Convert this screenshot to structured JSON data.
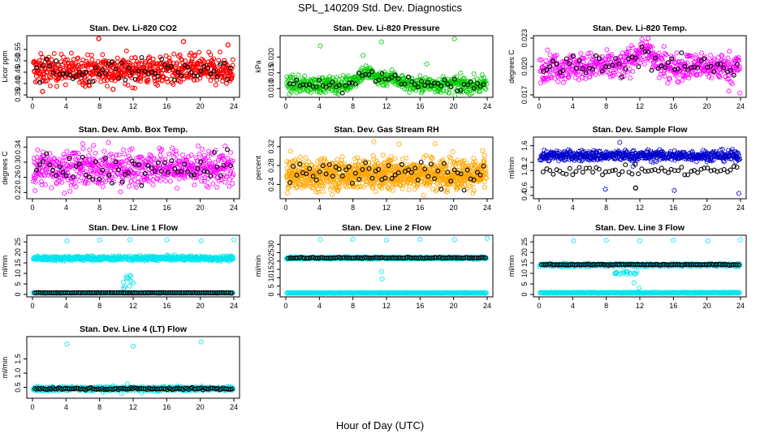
{
  "page": {
    "title": "SPL_140209  Std. Dev. Diagnostics",
    "xlabel": "Hour of Day (UTC)"
  },
  "chart_data": [
    {
      "id": "co2",
      "type": "scatter",
      "title": "Stan. Dev. Li-820 CO2",
      "ylabel": "Licor ppm",
      "xlim": [
        0,
        24
      ],
      "xticks": [
        0,
        4,
        8,
        12,
        16,
        20,
        24
      ],
      "ylim": [
        0.35,
        0.6
      ],
      "yticks": [
        "0.35",
        "0.40",
        "0.45",
        "0.50",
        "0.55"
      ],
      "series": [
        {
          "color": "#ff0000",
          "shape": "ring",
          "x_range": [
            0.1,
            23.9
          ],
          "count": 620,
          "center": 0.46,
          "spread": 0.035,
          "outliers": [
            [
              7.9,
              0.598
            ],
            [
              18.0,
              0.585
            ],
            [
              1.2,
              0.365
            ],
            [
              9.6,
              0.375
            ],
            [
              23.3,
              0.57
            ]
          ]
        },
        {
          "color": "#000000",
          "shape": "ring",
          "x_range": [
            0.5,
            23.6
          ],
          "count": 60,
          "center": 0.455,
          "spread": 0.03,
          "outliers": []
        }
      ]
    },
    {
      "id": "pressure",
      "type": "scatter",
      "title": "Stan. Dev. Li-820 Pressure",
      "ylabel": "kPa",
      "xlim": [
        0,
        24
      ],
      "xticks": [
        0,
        4,
        8,
        12,
        16,
        20,
        24
      ],
      "ylim": [
        0.008,
        0.026
      ],
      "yticks": [
        "0.010",
        "0.015",
        "0.020"
      ],
      "series": [
        {
          "color": "#00cc00",
          "shape": "sun",
          "x_range": [
            0.1,
            23.9
          ],
          "count": 560,
          "center": 0.0112,
          "spread": 0.0014,
          "hump": [
            [
              9.5,
              0.015
            ],
            [
              12.5,
              0.0135
            ]
          ],
          "outliers": [
            [
              4.1,
              0.0235
            ],
            [
              20.1,
              0.0258
            ],
            [
              11.4,
              0.0248
            ],
            [
              16.8,
              0.0178
            ],
            [
              9.2,
              0.0205
            ]
          ]
        },
        {
          "color": "#000000",
          "shape": "ring",
          "x_range": [
            0.5,
            23.6
          ],
          "count": 60,
          "center": 0.0112,
          "spread": 0.0012,
          "hump": [
            [
              9.5,
              0.0145
            ],
            [
              12.5,
              0.013
            ]
          ],
          "outliers": []
        }
      ]
    },
    {
      "id": "temp",
      "type": "scatter",
      "title": "Stan. Dev. Li-820 Temp.",
      "ylabel": "degrees C",
      "xlim": [
        0,
        24
      ],
      "xticks": [
        0,
        4,
        8,
        12,
        16,
        20,
        24
      ],
      "ylim": [
        0.017,
        0.023
      ],
      "yticks": [
        "0.017",
        "0.020",
        "0.023"
      ],
      "series": [
        {
          "color": "#ff00ff",
          "shape": "sun",
          "x_range": [
            0.1,
            23.9
          ],
          "count": 560,
          "center": 0.02,
          "spread": 0.0008,
          "hump": [
            [
              12.3,
              0.0217
            ]
          ],
          "outliers": [
            [
              23.9,
              0.0172
            ],
            [
              22.6,
              0.0174
            ]
          ]
        },
        {
          "color": "#000000",
          "shape": "ring",
          "x_range": [
            0.5,
            23.6
          ],
          "count": 60,
          "center": 0.02,
          "spread": 0.0007,
          "hump": [
            [
              12.3,
              0.0215
            ]
          ],
          "outliers": []
        }
      ]
    },
    {
      "id": "ambbox",
      "type": "scatter",
      "title": "Stan. Dev. Amb. Box Temp.",
      "ylabel": "degrees C",
      "xlim": [
        0,
        24
      ],
      "xticks": [
        0,
        4,
        8,
        12,
        16,
        20,
        24
      ],
      "ylim": [
        0.21,
        0.36
      ],
      "yticks": [
        "0.22",
        "0.26",
        "0.30",
        "0.34"
      ],
      "series": [
        {
          "color": "#ff00ff",
          "shape": "sun",
          "x_range": [
            0.1,
            23.9
          ],
          "count": 620,
          "center": 0.285,
          "spread": 0.026,
          "outliers": [
            [
              0.3,
              0.225
            ],
            [
              3.8,
              0.218
            ],
            [
              10.5,
              0.222
            ]
          ]
        },
        {
          "color": "#000000",
          "shape": "ring",
          "x_range": [
            0.5,
            23.6
          ],
          "count": 60,
          "center": 0.28,
          "spread": 0.022,
          "outliers": []
        }
      ]
    },
    {
      "id": "rh",
      "type": "scatter",
      "title": "Stan. Dev. Gas Stream RH",
      "ylabel": "percent",
      "xlim": [
        0,
        24
      ],
      "xticks": [
        0,
        4,
        8,
        12,
        16,
        20,
        24
      ],
      "ylim": [
        0.215,
        0.335
      ],
      "yticks": [
        "0.24",
        "0.28",
        "0.32"
      ],
      "series": [
        {
          "color": "#ffa500",
          "shape": "sun",
          "x_range": [
            0.1,
            23.9
          ],
          "count": 1000,
          "center": 0.262,
          "spread": 0.018,
          "outliers": [
            [
              10.5,
              0.33
            ],
            [
              13.5,
              0.325
            ],
            [
              17.8,
              0.326
            ],
            [
              0.2,
              0.222
            ]
          ]
        },
        {
          "color": "#000000",
          "shape": "ring",
          "x_range": [
            0.5,
            23.6
          ],
          "count": 60,
          "center": 0.262,
          "spread": 0.015,
          "outliers": []
        }
      ]
    },
    {
      "id": "flow",
      "type": "scatter",
      "title": "Stan. Dev. Sample Flow",
      "ylabel": "ml/min",
      "xlim": [
        0,
        24
      ],
      "xticks": [
        0,
        4,
        8,
        12,
        16,
        20,
        24
      ],
      "ylim": [
        0.38,
        1.75
      ],
      "yticks": [
        "0.4",
        "0.6",
        "1.0",
        "1.2",
        "1.6"
      ],
      "series": [
        {
          "color": "#0000cc",
          "shape": "sun",
          "x_range": [
            0.1,
            23.9
          ],
          "count": 560,
          "center": 1.36,
          "spread": 0.07,
          "outliers": [
            [
              9.6,
              1.68
            ],
            [
              7.9,
              0.55
            ],
            [
              16.1,
              0.52
            ],
            [
              23.8,
              0.45
            ],
            [
              11.2,
              1.1
            ]
          ]
        },
        {
          "color": "#000000",
          "shape": "ring",
          "x_range": [
            0.5,
            23.6
          ],
          "count": 60,
          "center": 1.0,
          "spread": 0.06,
          "outliers": [
            [
              11.5,
              0.58
            ]
          ]
        }
      ]
    },
    {
      "id": "line1",
      "type": "scatter",
      "title": "Stan. Dev. Line 1 Flow",
      "ylabel": "ml/min",
      "xlim": [
        0,
        24
      ],
      "xticks": [
        0,
        4,
        8,
        12,
        16,
        20,
        24
      ],
      "ylim": [
        0,
        27
      ],
      "yticks": [
        "0",
        "5",
        "10",
        "15",
        "20",
        "25"
      ],
      "series": [
        {
          "color": "#00e5ee",
          "shape": "sun",
          "x_range": [
            0.1,
            23.9
          ],
          "count": 600,
          "center": 17.2,
          "spread": 0.6,
          "dip": [
            [
              10.8,
              3.0
            ],
            [
              12.0,
              9.0
            ]
          ],
          "outliers": [
            [
              4.1,
              25.5
            ],
            [
              8.0,
              25.8
            ],
            [
              11.6,
              26.0
            ],
            [
              16.0,
              26.0
            ],
            [
              20.1,
              25.5
            ],
            [
              24.0,
              26.0
            ],
            [
              10.9,
              3.0
            ],
            [
              12.0,
              5.5
            ]
          ]
        },
        {
          "color": "#00e5ee",
          "shape": "sun",
          "x_range": [
            0.1,
            23.9
          ],
          "count": 500,
          "center": 0.7,
          "spread": 0.1,
          "outliers": []
        },
        {
          "color": "#000000",
          "shape": "ring",
          "x_range": [
            0.3,
            23.8
          ],
          "count": 110,
          "center": 0.8,
          "spread": 0.05,
          "outliers": []
        }
      ]
    },
    {
      "id": "line2",
      "type": "scatter",
      "title": "Stan. Dev. Line 2 Flow",
      "ylabel": "ml/min",
      "xlim": [
        0,
        24
      ],
      "xticks": [
        0,
        4,
        8,
        12,
        16,
        20,
        24
      ],
      "ylim": [
        0,
        34
      ],
      "yticks": [
        "0",
        "5",
        "10",
        "15",
        "20",
        "25",
        "30"
      ],
      "series": [
        {
          "color": "#00e5ee",
          "shape": "sun",
          "x_range": [
            0.1,
            23.9
          ],
          "count": 600,
          "center": 21.8,
          "spread": 0.35,
          "dip": [
            [
              10.7,
              5.0
            ],
            [
              11.6,
              15.0
            ]
          ],
          "outliers": [
            [
              4.1,
              32.8
            ],
            [
              8.0,
              33.0
            ],
            [
              12.0,
              32.5
            ],
            [
              16.0,
              33.0
            ],
            [
              20.1,
              32.8
            ],
            [
              24.0,
              33.5
            ]
          ]
        },
        {
          "color": "#00e5ee",
          "shape": "sun",
          "x_range": [
            0.1,
            23.9
          ],
          "count": 500,
          "center": 0.9,
          "spread": 0.1,
          "outliers": []
        },
        {
          "color": "#000000",
          "shape": "ring",
          "x_range": [
            0.3,
            23.8
          ],
          "count": 110,
          "center": 21.9,
          "spread": 0.2,
          "dip": [
            [
              10.9,
              14.5
            ],
            [
              11.6,
              17.0
            ]
          ],
          "outliers": []
        }
      ]
    },
    {
      "id": "line3",
      "type": "scatter",
      "title": "Stan. Dev. Line 3 Flow",
      "ylabel": "ml/min",
      "xlim": [
        0,
        24
      ],
      "xticks": [
        0,
        4,
        8,
        12,
        16,
        20,
        24
      ],
      "ylim": [
        0,
        27
      ],
      "yticks": [
        "0",
        "5",
        "10",
        "15",
        "20",
        "25"
      ],
      "series": [
        {
          "color": "#00e5ee",
          "shape": "sun",
          "x_range": [
            0.1,
            23.9
          ],
          "count": 600,
          "center": 14.0,
          "spread": 0.35,
          "dip": [
            [
              9.0,
              9.5
            ],
            [
              12.0,
              11.0
            ]
          ],
          "outliers": [
            [
              4.1,
              25.5
            ],
            [
              8.0,
              25.8
            ],
            [
              12.0,
              25.5
            ],
            [
              16.0,
              25.8
            ],
            [
              20.1,
              25.5
            ],
            [
              24.0,
              26.0
            ],
            [
              11.3,
              5.5
            ],
            [
              11.9,
              3.0
            ]
          ]
        },
        {
          "color": "#00e5ee",
          "shape": "sun",
          "x_range": [
            0.1,
            23.9
          ],
          "count": 500,
          "center": 0.8,
          "spread": 0.1,
          "outliers": []
        },
        {
          "color": "#000000",
          "shape": "ring",
          "x_range": [
            0.3,
            23.8
          ],
          "count": 110,
          "center": 14.2,
          "spread": 0.15,
          "outliers": []
        }
      ]
    },
    {
      "id": "line4",
      "type": "scatter",
      "title": "Stan. Dev. Line 4 (LT) Flow",
      "ylabel": "ml/min",
      "xlim": [
        0,
        24
      ],
      "xticks": [
        0,
        4,
        8,
        12,
        16,
        20,
        24
      ],
      "ylim": [
        0.2,
        2.2
      ],
      "yticks": [
        "0.5",
        "1.0",
        "1.5"
      ],
      "series": [
        {
          "color": "#00e5ee",
          "shape": "sun",
          "x_range": [
            0.1,
            23.9
          ],
          "count": 600,
          "center": 0.45,
          "spread": 0.04,
          "outliers": [
            [
              4.1,
              2.02
            ],
            [
              12.0,
              1.95
            ],
            [
              20.1,
              2.1
            ],
            [
              11.3,
              0.62
            ],
            [
              10.6,
              0.28
            ],
            [
              8.4,
              0.32
            ],
            [
              13.0,
              0.3
            ]
          ]
        },
        {
          "color": "#000000",
          "shape": "ring",
          "x_range": [
            0.3,
            23.8
          ],
          "count": 110,
          "center": 0.45,
          "spread": 0.02,
          "outliers": []
        }
      ]
    }
  ]
}
